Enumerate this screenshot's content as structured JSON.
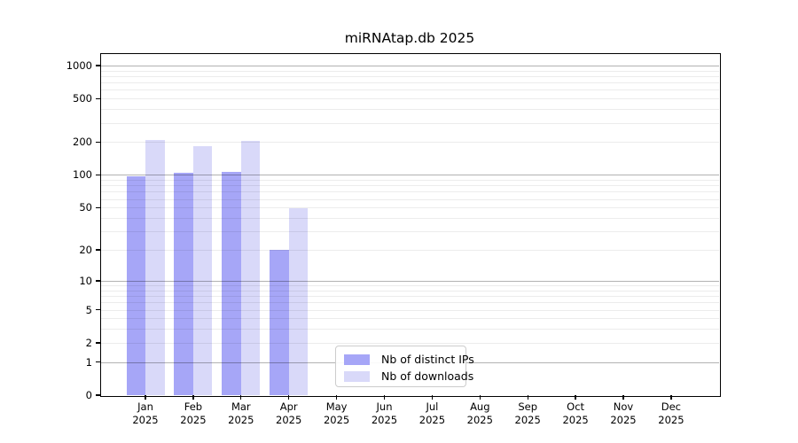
{
  "figure": {
    "title": "miRNAtap.db 2025"
  },
  "chart_data": {
    "type": "bar",
    "title": "miRNAtap.db 2025",
    "x_months": [
      "Jan",
      "Feb",
      "Mar",
      "Apr",
      "May",
      "Jun",
      "Jul",
      "Aug",
      "Sep",
      "Oct",
      "Nov",
      "Dec"
    ],
    "x_year": "2025",
    "series": [
      {
        "name": "Nb of distinct IPs",
        "color": "#a6a6f7",
        "values": [
          97,
          105,
          107,
          20,
          null,
          null,
          null,
          null,
          null,
          null,
          null,
          null
        ]
      },
      {
        "name": "Nb of downloads",
        "color": "#d9d9f9",
        "values": [
          210,
          183,
          205,
          49,
          null,
          null,
          null,
          null,
          null,
          null,
          null,
          null
        ]
      }
    ],
    "y_ticks": [
      0,
      1,
      2,
      5,
      10,
      20,
      50,
      100,
      200,
      500,
      1000
    ],
    "y_scale": "log10(value+1)",
    "y_major_gridlines": [
      1,
      10,
      100,
      1000
    ],
    "y_minor_gridlines": [
      2,
      3,
      4,
      5,
      6,
      7,
      8,
      9,
      20,
      30,
      40,
      50,
      60,
      70,
      80,
      90,
      200,
      300,
      400,
      500,
      600,
      700,
      800,
      900
    ],
    "grid": "horizontal",
    "legend_position": "inside-bottom-center",
    "axis_color": "#000000",
    "background": "#ffffff"
  }
}
